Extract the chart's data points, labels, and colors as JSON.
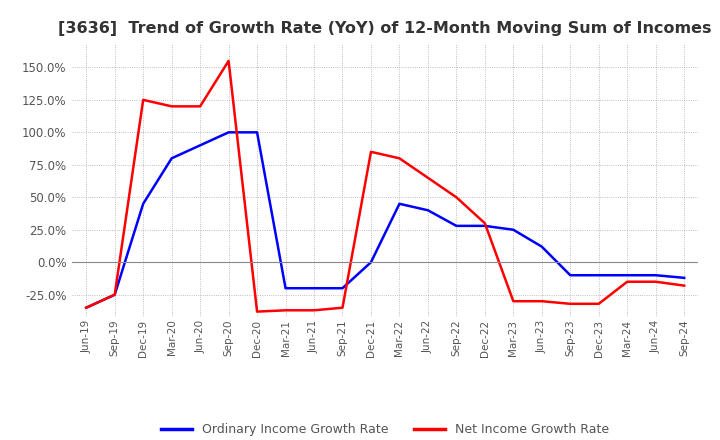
{
  "title": "[3636]  Trend of Growth Rate (YoY) of 12-Month Moving Sum of Incomes",
  "title_fontsize": 11.5,
  "ylim": [
    -42,
    168
  ],
  "yticks": [
    -25,
    0,
    25,
    50,
    75,
    100,
    125,
    150
  ],
  "legend_labels": [
    "Ordinary Income Growth Rate",
    "Net Income Growth Rate"
  ],
  "line_colors": [
    "#0000ff",
    "#ff0000"
  ],
  "x_labels": [
    "Jun-19",
    "Sep-19",
    "Dec-19",
    "Mar-20",
    "Jun-20",
    "Sep-20",
    "Dec-20",
    "Mar-21",
    "Jun-21",
    "Sep-21",
    "Dec-21",
    "Mar-22",
    "Jun-22",
    "Sep-22",
    "Dec-22",
    "Mar-23",
    "Jun-23",
    "Sep-23",
    "Dec-23",
    "Mar-24",
    "Jun-24",
    "Sep-24"
  ],
  "ordinary_income_growth": [
    -35,
    -25,
    45,
    80,
    90,
    100,
    100,
    -20,
    -20,
    -20,
    0,
    45,
    40,
    28,
    28,
    25,
    12,
    -10,
    -10,
    -10,
    -10,
    -12
  ],
  "net_income_growth": [
    -35,
    -25,
    125,
    120,
    120,
    155,
    -38,
    -37,
    -37,
    -35,
    85,
    80,
    65,
    50,
    30,
    -30,
    -30,
    -32,
    -32,
    -15,
    -15,
    -18
  ],
  "background_color": "#ffffff",
  "grid_color": "#aaaaaa",
  "text_color": "#555555"
}
